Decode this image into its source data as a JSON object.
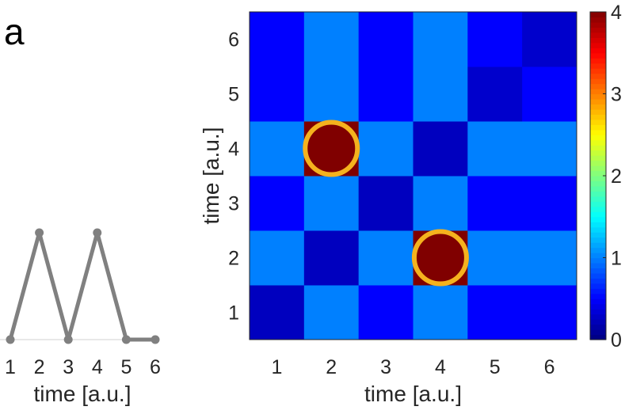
{
  "panel_label": "a",
  "chart_data": [
    {
      "type": "line",
      "x": [
        1,
        2,
        3,
        4,
        5,
        6
      ],
      "y": [
        0,
        1,
        0,
        1,
        0,
        0
      ],
      "xlabel": "time [a.u.]",
      "xticks": [
        1,
        2,
        3,
        4,
        5,
        6
      ],
      "line_color": "#808080"
    },
    {
      "type": "heatmap",
      "x": [
        1,
        2,
        3,
        4,
        5,
        6
      ],
      "y": [
        1,
        2,
        3,
        4,
        5,
        6
      ],
      "xlabel": "time [a.u.]",
      "ylabel": "time [a.u.]",
      "z": [
        [
          0.25,
          1.0,
          0.5,
          1.0,
          0.5,
          0.5
        ],
        [
          1.0,
          0.25,
          1.0,
          4.0,
          1.0,
          1.0
        ],
        [
          0.5,
          1.0,
          0.25,
          1.0,
          0.5,
          0.5
        ],
        [
          1.0,
          4.0,
          1.0,
          0.25,
          1.0,
          1.0
        ],
        [
          0.5,
          1.0,
          0.5,
          1.0,
          0.3,
          0.5
        ],
        [
          0.5,
          1.0,
          0.5,
          1.0,
          0.5,
          0.3
        ]
      ],
      "colorbar": {
        "min": 0,
        "max": 4,
        "ticks": [
          0,
          1,
          2,
          3,
          4
        ],
        "colormap": "jet"
      },
      "highlights": [
        {
          "x": 2,
          "y": 4,
          "color": "#f5b21e"
        },
        {
          "x": 4,
          "y": 2,
          "color": "#f5b21e"
        }
      ]
    }
  ]
}
